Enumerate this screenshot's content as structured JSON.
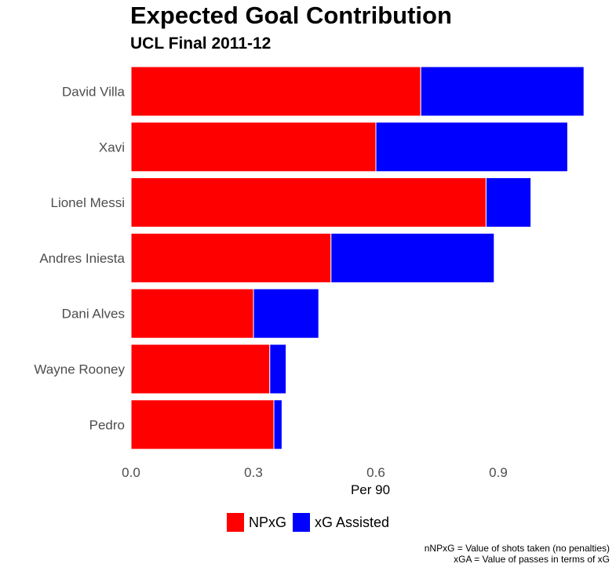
{
  "chart_data": {
    "type": "bar",
    "orientation": "horizontal",
    "stacked": true,
    "title": "Expected Goal Contribution",
    "subtitle": "UCL Final 2011-12",
    "xlabel": "Per 90",
    "ylabel": "",
    "xlim": [
      0,
      1.12
    ],
    "xticks": [
      0,
      0.3,
      0.6,
      0.9
    ],
    "xtick_labels": [
      "0.0",
      "0.3",
      "0.6",
      "0.9"
    ],
    "grid": false,
    "legend_position": "bottom",
    "categories": [
      "David Villa",
      "Xavi",
      "Lionel Messi",
      "Andres Iniesta",
      "Dani Alves",
      "Wayne Rooney",
      "Pedro"
    ],
    "series": [
      {
        "name": "NPxG",
        "color": "#ff0000",
        "values": [
          0.71,
          0.6,
          0.87,
          0.49,
          0.3,
          0.34,
          0.35
        ]
      },
      {
        "name": "xG Assisted",
        "color": "#0000ff",
        "values": [
          0.4,
          0.47,
          0.11,
          0.4,
          0.16,
          0.04,
          0.02
        ]
      }
    ],
    "caption_lines": [
      "nNPxG = Value of shots taken (no penalties)",
      "xGA = Value of passes in terms of xG"
    ]
  }
}
